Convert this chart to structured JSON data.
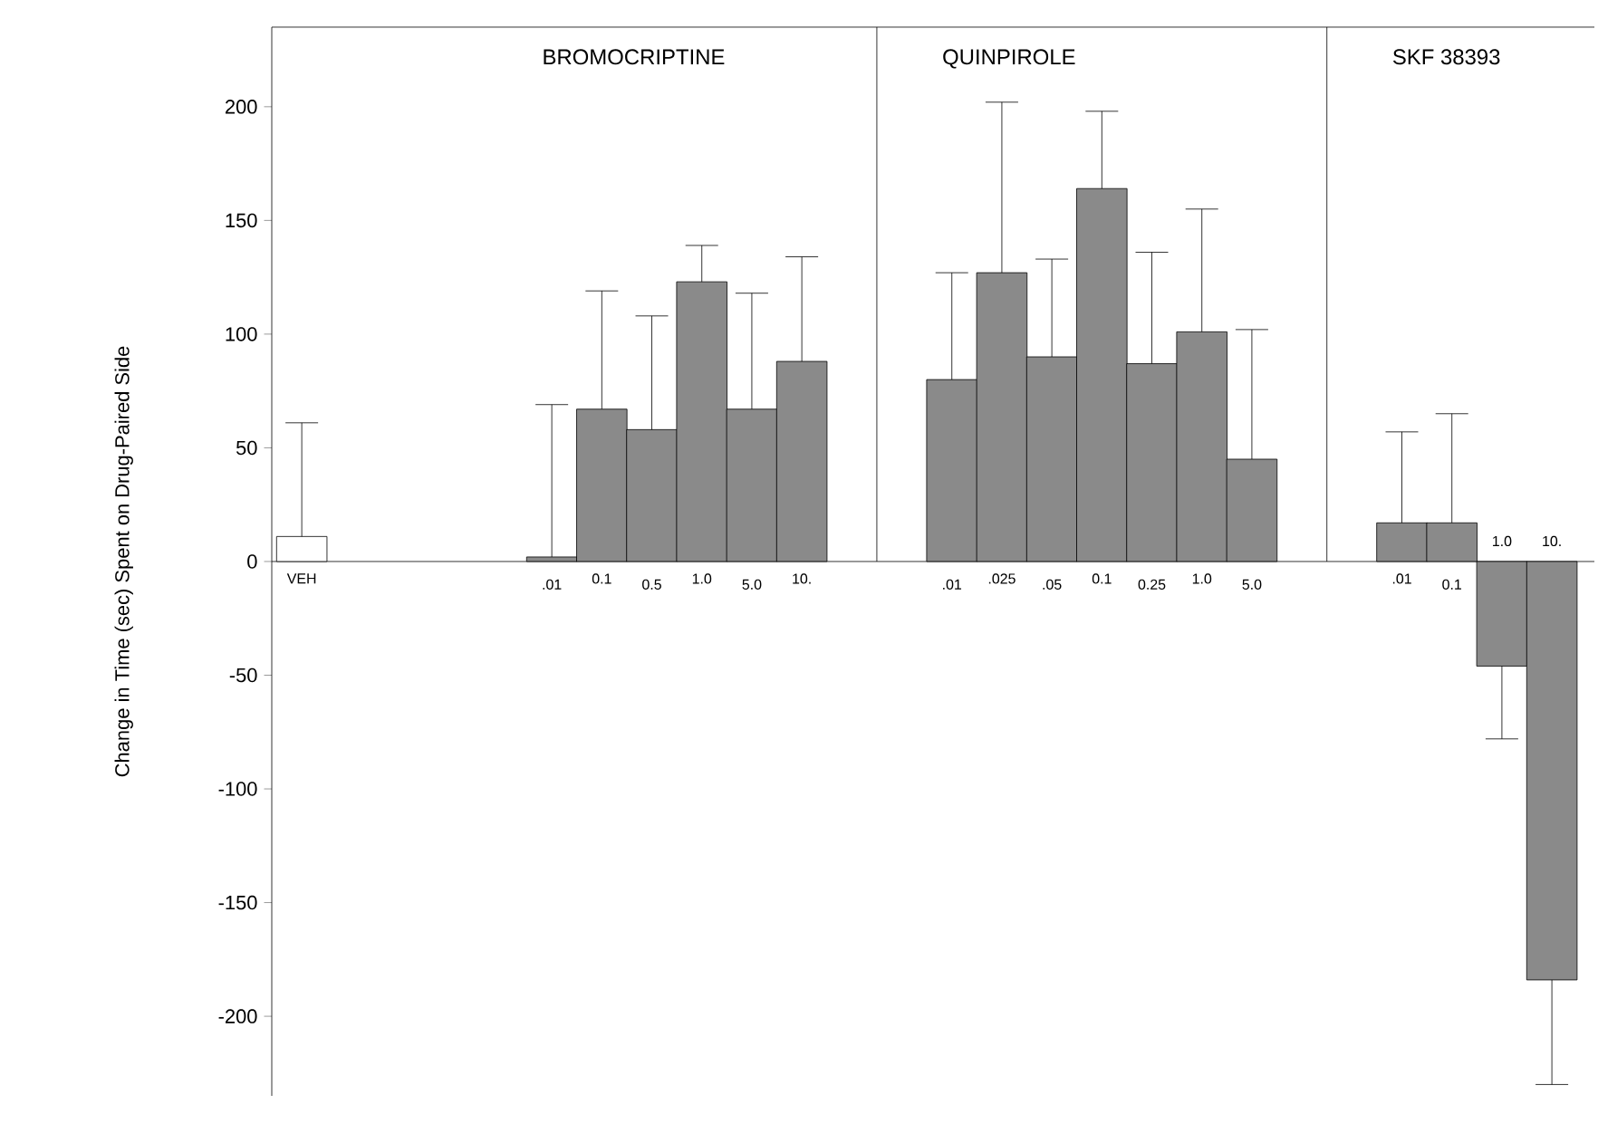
{
  "chart_data": {
    "type": "bar",
    "ylabel": "Change in Time (sec) Spent on Drug-Paired Side",
    "categories": [
      "VEH",
      null,
      null,
      null,
      null,
      ".01",
      "0.1",
      "0.5",
      "1.0",
      "5.0",
      "10.",
      null,
      null,
      ".01",
      ".025",
      ".05",
      "0.1",
      "0.25",
      "1.0",
      "5.0",
      null,
      null,
      ".01",
      "0.1",
      "1.0",
      "10."
    ],
    "values": [
      11,
      null,
      null,
      null,
      null,
      2,
      67,
      58,
      123,
      67,
      88,
      null,
      null,
      80,
      127,
      90,
      164,
      87,
      101,
      45,
      null,
      null,
      17,
      17,
      -46,
      -184
    ],
    "errors": [
      [
        11,
        61
      ],
      null,
      null,
      null,
      null,
      [
        2,
        69
      ],
      [
        67,
        119
      ],
      [
        58,
        108
      ],
      [
        123,
        139
      ],
      [
        67,
        118
      ],
      [
        88,
        134
      ],
      null,
      null,
      [
        80,
        127
      ],
      [
        127,
        202
      ],
      [
        90,
        133
      ],
      [
        164,
        198
      ],
      [
        87,
        136
      ],
      [
        101,
        155
      ],
      [
        45,
        102
      ],
      null,
      null,
      [
        17,
        57
      ],
      [
        17,
        65
      ],
      [
        -78,
        -46
      ],
      [
        -230,
        -184
      ]
    ],
    "colors": [
      "#ffffff",
      null,
      null,
      null,
      null,
      "#8a8a8a",
      "#8a8a8a",
      "#8a8a8a",
      "#8a8a8a",
      "#8a8a8a",
      "#8a8a8a",
      null,
      null,
      "#8a8a8a",
      "#8a8a8a",
      "#8a8a8a",
      "#8a8a8a",
      "#8a8a8a",
      "#8a8a8a",
      "#8a8a8a",
      null,
      null,
      "#8a8a8a",
      "#8a8a8a",
      "#8a8a8a",
      "#8a8a8a"
    ],
    "annotations": [
      "BROMOCRIPTINE",
      "QUINPIROLE",
      "SKF 38393"
    ],
    "ylim": [
      -235,
      235
    ],
    "yticks": [
      -200,
      -150,
      -100,
      -50,
      0,
      50,
      100,
      150,
      200
    ]
  }
}
